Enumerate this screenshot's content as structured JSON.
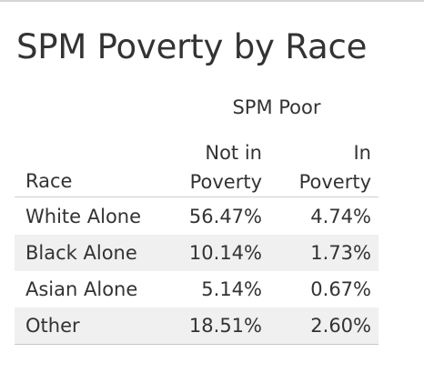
{
  "chart_data": {
    "type": "table",
    "title": "SPM Poverty by Race",
    "column_group": "SPM Poor",
    "row_header": "Race",
    "columns": [
      "Not in Poverty",
      "In Poverty"
    ],
    "column_lines": [
      [
        "Not in",
        "Poverty"
      ],
      [
        "In",
        "Poverty"
      ]
    ],
    "rows": [
      {
        "race": "White Alone",
        "not_in_poverty": "56.47%",
        "in_poverty": "4.74%"
      },
      {
        "race": "Black Alone",
        "not_in_poverty": "10.14%",
        "in_poverty": "1.73%"
      },
      {
        "race": "Asian Alone",
        "not_in_poverty": "5.14%",
        "in_poverty": "0.67%"
      },
      {
        "race": "Other",
        "not_in_poverty": "18.51%",
        "in_poverty": "2.60%"
      }
    ]
  }
}
